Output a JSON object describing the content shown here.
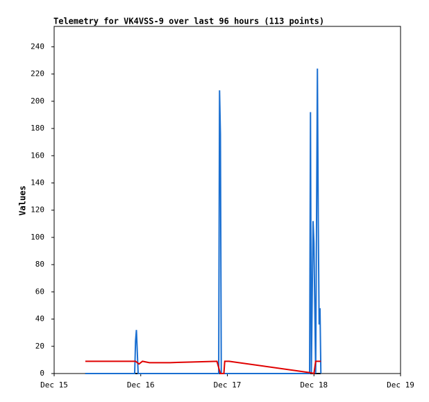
{
  "chart_data": {
    "type": "line",
    "title": "Telemetry for VK4VSS-9 over last 96 hours (113 points)",
    "y_label": "Values",
    "xlim": [
      0,
      4
    ],
    "xticks": [
      {
        "value": 0,
        "label": "Dec 15"
      },
      {
        "value": 1,
        "label": "Dec 16"
      },
      {
        "value": 2,
        "label": "Dec 17"
      },
      {
        "value": 3,
        "label": "Dec 18"
      },
      {
        "value": 4,
        "label": "Dec 19"
      }
    ],
    "ylim": [
      0,
      255
    ],
    "yticks": [
      0,
      20,
      40,
      60,
      80,
      100,
      120,
      140,
      160,
      180,
      200,
      220,
      240
    ],
    "grid": false,
    "series": [
      {
        "color": "#000000",
        "x": [
          0.36,
          3.08
        ],
        "values": [
          0,
          0
        ]
      },
      {
        "color": "#1a6fd1",
        "x": [
          0.36,
          0.93,
          0.94,
          0.95,
          0.96,
          0.97,
          1.9,
          1.91,
          1.92,
          1.93,
          2.95,
          2.96,
          2.97,
          2.99,
          3.0,
          3.02,
          3.03,
          3.04,
          3.05,
          3.06,
          3.07,
          3.08
        ],
        "values": [
          0,
          0,
          24,
          32,
          16,
          0,
          0,
          208,
          176,
          0,
          0,
          192,
          0,
          112,
          96,
          0,
          112,
          224,
          112,
          36,
          48,
          0
        ]
      },
      {
        "color": "#e00000",
        "x": [
          0.36,
          0.94,
          0.98,
          1.02,
          1.1,
          1.34,
          1.6,
          1.88,
          1.91,
          1.92,
          1.96,
          1.97,
          2.02,
          2.97,
          3.0,
          3.02,
          3.08
        ],
        "values": [
          9,
          9,
          7,
          9,
          8,
          8,
          8.5,
          9,
          2,
          0,
          0,
          9,
          9,
          0.5,
          0,
          9,
          9
        ]
      }
    ]
  }
}
